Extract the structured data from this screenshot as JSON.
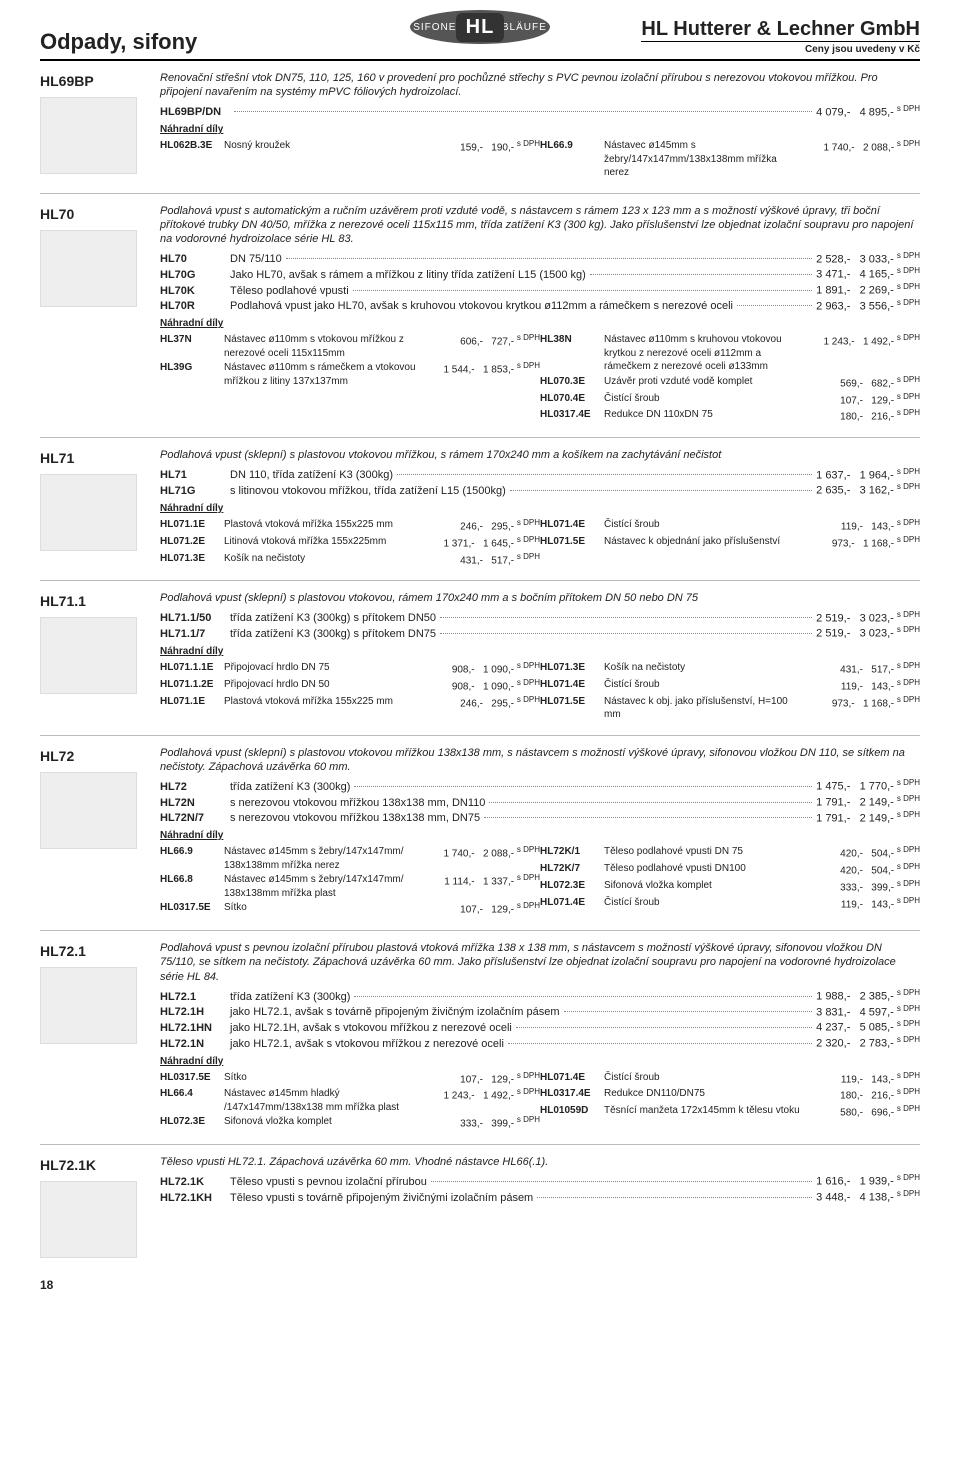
{
  "header": {
    "left": "Odpady, sifony",
    "logo_left": "SIFONE",
    "logo_center": "HL",
    "logo_right": "ABLÄUFE",
    "company": "HL Hutterer & Lechner GmbH",
    "subtitle": "Ceny jsou uvedeny v Kč"
  },
  "page_number": "18",
  "nahradni_label": "Náhradní díly",
  "dph_label": "s DPH",
  "sections": [
    {
      "code": "HL69BP",
      "intro": "Renovační střešní vtok DN75, 110, 125, 160 v provedení pro pochůzné střechy s PVC pevnou izolační přírubou s nerezovou vtokovou mřížkou. Pro připojení navařením na systémy mPVC fóliových hydroizolací.",
      "products": [
        {
          "code": "HL69BP/DN",
          "desc": "",
          "p1": "4 079,-",
          "p2": "4 895,-"
        }
      ],
      "spares": [
        [
          {
            "code": "HL062B.3E",
            "desc": "Nosný kroužek",
            "p1": "159,-",
            "p2": "190,-"
          }
        ],
        [
          {
            "code": "HL66.9",
            "desc": "Nástavec ø145mm s žebry/147x147mm/138x138mm mřížka nerez",
            "p1": "1 740,-",
            "p2": "2 088,-"
          }
        ]
      ]
    },
    {
      "code": "HL70",
      "intro": "Podlahová vpust s automatickým a ručním uzávěrem proti vzduté vodě, s nástavcem s rámem 123 x 123 mm a s možností výškové úpravy, tři boční přítokové trubky DN 40/50, mřížka z nerezové oceli 115x115 mm, třída zatížení K3 (300 kg). Jako příslušenství lze objednat izolační soupravu pro napojení na vodorovné hydroizolace série HL 83.",
      "products": [
        {
          "code": "HL70",
          "desc": "DN 75/110",
          "p1": "2 528,-",
          "p2": "3 033,-"
        },
        {
          "code": "HL70G",
          "desc": "Jako HL70, avšak s rámem a mřížkou z litiny třída zatížení L15 (1500 kg)",
          "p1": "3 471,-",
          "p2": "4 165,-"
        },
        {
          "code": "HL70K",
          "desc": "Těleso podlahové vpusti",
          "p1": "1 891,-",
          "p2": "2 269,-"
        },
        {
          "code": "HL70R",
          "desc": "Podlahová vpust jako HL70, avšak s kruhovou vtokovou krytkou ø112mm a rámečkem s nerezové oceli",
          "p1": "2 963,-",
          "p2": "3 556,-"
        }
      ],
      "spares": [
        [
          {
            "code": "HL37N",
            "desc": "Nástavec ø110mm s vtokovou mřížkou z nerezové oceli 115x115mm",
            "p1": "606,-",
            "p2": "727,-"
          },
          {
            "code": "HL39G",
            "desc": "Nástavec ø110mm s rámečkem a vtokovou mřížkou z litiny 137x137mm",
            "p1": "1 544,-",
            "p2": "1 853,-"
          }
        ],
        [
          {
            "code": "HL38N",
            "desc": "Nástavec ø110mm s kruhovou vtokovou krytkou z nerezové oceli ø112mm a rámečkem z nerezové oceli ø133mm",
            "p1": "1 243,-",
            "p2": "1 492,-"
          },
          {
            "code": "HL070.3E",
            "desc": "Uzávěr proti vzduté vodě komplet",
            "p1": "569,-",
            "p2": "682,-"
          },
          {
            "code": "HL070.4E",
            "desc": "Čistící šroub",
            "p1": "107,-",
            "p2": "129,-"
          },
          {
            "code": "HL0317.4E",
            "desc": "Redukce DN 110xDN 75",
            "p1": "180,-",
            "p2": "216,-"
          }
        ]
      ]
    },
    {
      "code": "HL71",
      "intro": "Podlahová vpust (sklepní) s plastovou vtokovou mřížkou, s rámem 170x240 mm a košíkem na zachytávání nečistot",
      "products": [
        {
          "code": "HL71",
          "desc": "DN 110, třída zatížení K3 (300kg)",
          "p1": "1 637,-",
          "p2": "1 964,-"
        },
        {
          "code": "HL71G",
          "desc": "s litinovou vtokovou mřížkou, třída zatížení L15 (1500kg)",
          "p1": "2 635,-",
          "p2": "3 162,-"
        }
      ],
      "spares": [
        [
          {
            "code": "HL071.1E",
            "desc": "Plastová vtoková mřížka 155x225 mm",
            "p1": "246,-",
            "p2": "295,-"
          },
          {
            "code": "HL071.2E",
            "desc": "Litinová vtoková mřížka 155x225mm",
            "p1": "1 371,-",
            "p2": "1 645,-"
          },
          {
            "code": "HL071.3E",
            "desc": "Košík na nečistoty",
            "p1": "431,-",
            "p2": "517,-"
          }
        ],
        [
          {
            "code": "HL071.4E",
            "desc": "Čistící šroub",
            "p1": "119,-",
            "p2": "143,-"
          },
          {
            "code": "HL071.5E",
            "desc": "Nástavec k objednání jako příslušenství",
            "p1": "973,-",
            "p2": "1 168,-"
          }
        ]
      ]
    },
    {
      "code": "HL71.1",
      "intro": "Podlahová vpust (sklepní) s plastovou vtokovou, rámem 170x240 mm a s bočním přítokem DN 50 nebo DN 75",
      "products": [
        {
          "code": "HL71.1/50",
          "desc": "třída zatížení K3 (300kg) s přítokem DN50",
          "p1": "2 519,-",
          "p2": "3 023,-"
        },
        {
          "code": "HL71.1/7",
          "desc": "třída zatížení K3 (300kg) s přítokem DN75",
          "p1": "2 519,-",
          "p2": "3 023,-"
        }
      ],
      "spares": [
        [
          {
            "code": "HL071.1.1E",
            "desc": "Připojovací hrdlo DN 75",
            "p1": "908,-",
            "p2": "1 090,-"
          },
          {
            "code": "HL071.1.2E",
            "desc": "Připojovací hrdlo DN 50",
            "p1": "908,-",
            "p2": "1 090,-"
          },
          {
            "code": "HL071.1E",
            "desc": "Plastová vtoková mřížka 155x225 mm",
            "p1": "246,-",
            "p2": "295,-"
          }
        ],
        [
          {
            "code": "HL071.3E",
            "desc": "Košík na nečistoty",
            "p1": "431,-",
            "p2": "517,-"
          },
          {
            "code": "HL071.4E",
            "desc": "Čistící šroub",
            "p1": "119,-",
            "p2": "143,-"
          },
          {
            "code": "HL071.5E",
            "desc": "Nástavec k obj. jako příslušenství, H=100 mm",
            "p1": "973,-",
            "p2": "1 168,-"
          }
        ]
      ]
    },
    {
      "code": "HL72",
      "intro": "Podlahová vpust (sklepní) s plastovou vtokovou mřížkou 138x138 mm, s nástavcem s možností výškové úpravy, sifonovou vložkou DN 110, se sítkem na nečistoty. Zápachová uzávěrka 60 mm.",
      "products": [
        {
          "code": "HL72",
          "desc": "třída zatížení K3 (300kg)",
          "p1": "1 475,-",
          "p2": "1 770,-"
        },
        {
          "code": "HL72N",
          "desc": "s nerezovou vtokovou mřížkou 138x138 mm, DN110",
          "p1": "1 791,-",
          "p2": "2 149,-"
        },
        {
          "code": "HL72N/7",
          "desc": "s nerezovou vtokovou mřížkou 138x138 mm, DN75",
          "p1": "1 791,-",
          "p2": "2 149,-"
        }
      ],
      "spares": [
        [
          {
            "code": "HL66.9",
            "desc": "Nástavec ø145mm s žebry/147x147mm/ 138x138mm mřížka nerez",
            "p1": "1 740,-",
            "p2": "2 088,-"
          },
          {
            "code": "HL66.8",
            "desc": "Nástavec ø145mm s žebry/147x147mm/ 138x138mm mřížka plast",
            "p1": "1 114,-",
            "p2": "1 337,-"
          },
          {
            "code": "HL0317.5E",
            "desc": "Sítko",
            "p1": "107,-",
            "p2": "129,-"
          }
        ],
        [
          {
            "code": "HL72K/1",
            "desc": "Těleso podlahové vpusti DN 75",
            "p1": "420,-",
            "p2": "504,-"
          },
          {
            "code": "HL72K/7",
            "desc": "Těleso podlahové vpusti DN100",
            "p1": "420,-",
            "p2": "504,-"
          },
          {
            "code": "HL072.3E",
            "desc": "Sifonová vložka komplet",
            "p1": "333,-",
            "p2": "399,-"
          },
          {
            "code": "HL071.4E",
            "desc": "Čistící šroub",
            "p1": "119,-",
            "p2": "143,-"
          }
        ]
      ]
    },
    {
      "code": "HL72.1",
      "intro": "Podlahová vpust s pevnou izolační přírubou plastová vtoková mřížka 138 x 138 mm, s nástavcem s možností výškové úpravy, sifonovou vložkou DN 75/110, se sítkem na nečistoty. Zápachová uzávěrka 60 mm. Jako příslušenství lze objednat izolační soupravu pro napojení na vodorovné hydroizolace série HL 84.",
      "products": [
        {
          "code": "HL72.1",
          "desc": "třída zatížení K3 (300kg)",
          "p1": "1 988,-",
          "p2": "2 385,-"
        },
        {
          "code": "HL72.1H",
          "desc": "jako HL72.1, avšak s továrně připojeným živičným izolačním pásem",
          "p1": "3 831,-",
          "p2": "4 597,-"
        },
        {
          "code": "HL72.1HN",
          "desc": "jako HL72.1H, avšak s vtokovou mřížkou z nerezové oceli",
          "p1": "4 237,-",
          "p2": "5 085,-"
        },
        {
          "code": "HL72.1N",
          "desc": "jako HL72.1, avšak s vtokovou mřížkou z nerezové oceli",
          "p1": "2 320,-",
          "p2": "2 783,-"
        }
      ],
      "spares": [
        [
          {
            "code": "HL0317.5E",
            "desc": "Sítko",
            "p1": "107,-",
            "p2": "129,-"
          },
          {
            "code": "HL66.4",
            "desc": "Nástavec ø145mm hladký /147x147mm/138x138 mm mřížka plast",
            "p1": "1 243,-",
            "p2": "1 492,-"
          },
          {
            "code": "HL072.3E",
            "desc": "Sifonová vložka komplet",
            "p1": "333,-",
            "p2": "399,-"
          }
        ],
        [
          {
            "code": "HL071.4E",
            "desc": "Čistící šroub",
            "p1": "119,-",
            "p2": "143,-"
          },
          {
            "code": "HL0317.4E",
            "desc": "Redukce DN110/DN75",
            "p1": "180,-",
            "p2": "216,-"
          },
          {
            "code": "HL01059D",
            "desc": "Těsnící manžeta 172x145mm k tělesu vtoku",
            "p1": "580,-",
            "p2": "696,-"
          }
        ]
      ]
    },
    {
      "code": "HL72.1K",
      "intro": "Těleso vpusti HL72.1. Zápachová uzávěrka 60 mm. Vhodné nástavce HL66(.1).",
      "products": [
        {
          "code": "HL72.1K",
          "desc": "Těleso vpusti s pevnou izolační přírubou",
          "p1": "1 616,-",
          "p2": "1 939,-"
        },
        {
          "code": "HL72.1KH",
          "desc": "Těleso vpusti s továrně připojeným živičnými izolačním pásem",
          "p1": "3 448,-",
          "p2": "4 138,-"
        }
      ],
      "spares": []
    }
  ]
}
